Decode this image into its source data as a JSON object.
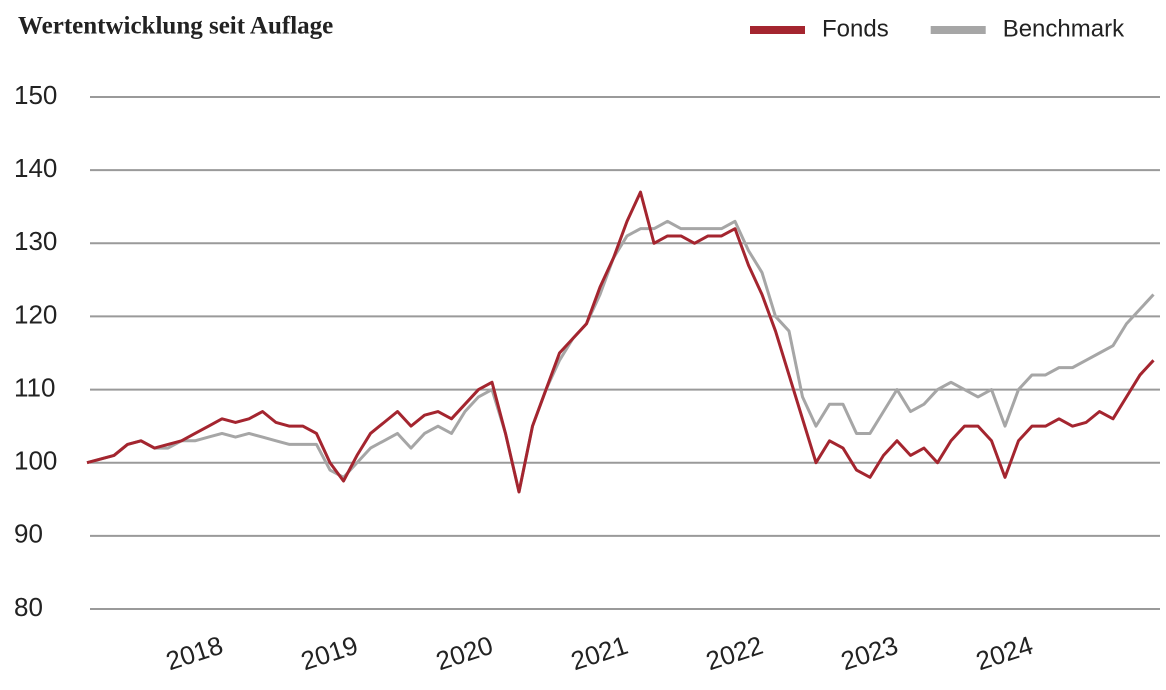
{
  "chart_data": {
    "type": "line",
    "title": "Wertentwicklung seit Auflage",
    "categories": [
      null,
      null,
      null,
      null,
      null,
      null,
      null,
      null,
      "2018",
      null,
      null,
      null,
      null,
      null,
      null,
      null,
      null,
      null,
      "2019",
      null,
      null,
      null,
      null,
      null,
      null,
      null,
      null,
      null,
      "2020",
      null,
      null,
      null,
      null,
      null,
      null,
      null,
      null,
      null,
      "2021",
      null,
      null,
      null,
      null,
      null,
      null,
      null,
      null,
      null,
      "2022",
      null,
      null,
      null,
      null,
      null,
      null,
      null,
      null,
      null,
      "2023",
      null,
      null,
      null,
      null,
      null,
      null,
      null,
      null,
      null,
      "2024",
      null,
      null,
      null,
      null,
      null,
      null,
      null,
      null,
      null,
      null,
      null
    ],
    "series": [
      {
        "name": "Fonds",
        "color": "#a4252f",
        "values": [
          100,
          100.5,
          101,
          102.5,
          103,
          102,
          102.5,
          103,
          104,
          105,
          106,
          105.5,
          106,
          107,
          105.5,
          105,
          105,
          104,
          100,
          97.5,
          101,
          104,
          105.5,
          107,
          105,
          106.5,
          107,
          106,
          108,
          110,
          111,
          104,
          96,
          105,
          110,
          115,
          117,
          119,
          124,
          128,
          133,
          137,
          130,
          131,
          131,
          130,
          131,
          131,
          132,
          127,
          123,
          118,
          112,
          106,
          100,
          103,
          102,
          99,
          98,
          101,
          103,
          101,
          102,
          100,
          103,
          105,
          105,
          103,
          98,
          103,
          105,
          105,
          106,
          105,
          105.5,
          107,
          106,
          109,
          112,
          114
        ]
      },
      {
        "name": "Benchmark",
        "color": "#a6a6a6",
        "values": [
          100,
          100.5,
          101,
          102.5,
          103,
          102,
          102,
          103,
          103,
          103.5,
          104,
          103.5,
          104,
          103.5,
          103,
          102.5,
          102.5,
          102.5,
          99,
          98,
          100,
          102,
          103,
          104,
          102,
          104,
          105,
          104,
          107,
          109,
          110,
          104,
          96,
          105,
          110,
          114,
          117,
          119,
          123,
          128,
          131,
          132,
          132,
          133,
          132,
          132,
          132,
          132,
          133,
          129,
          126,
          120,
          118,
          109,
          105,
          108,
          108,
          104,
          104,
          107,
          110,
          107,
          108,
          110,
          111,
          110,
          109,
          110,
          105,
          110,
          112,
          112,
          113,
          113,
          114,
          115,
          116,
          119,
          121,
          123
        ]
      }
    ],
    "ylim": [
      80,
      150
    ],
    "yticks": [
      80,
      90,
      100,
      110,
      120,
      130,
      140,
      150
    ],
    "grid": true,
    "legend": "top-right"
  }
}
